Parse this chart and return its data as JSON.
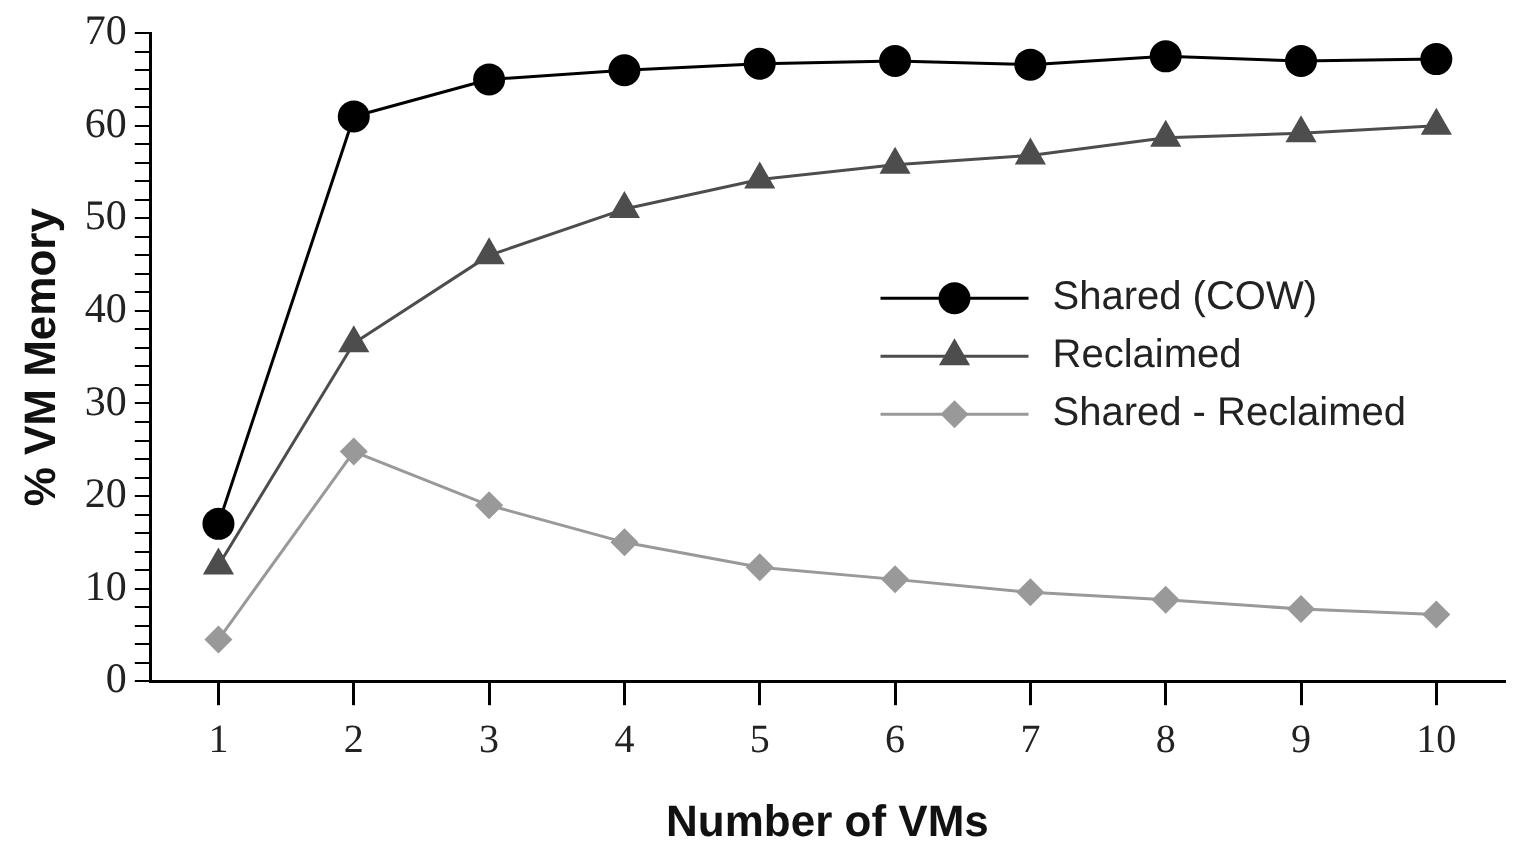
{
  "chart_data": {
    "type": "line",
    "xlabel": "Number of VMs",
    "ylabel": "% VM Memory",
    "categories": [
      "1",
      "2",
      "3",
      "4",
      "5",
      "6",
      "7",
      "8",
      "9",
      "10"
    ],
    "series": [
      {
        "name": "Shared (COW)",
        "color": "#000000",
        "marker": "circle",
        "values": [
          17,
          61,
          65,
          66,
          66.7,
          67,
          66.6,
          67.5,
          67,
          67.2
        ]
      },
      {
        "name": "Reclaimed",
        "color": "#4d4d4d",
        "marker": "triangle",
        "values": [
          12.5,
          36.5,
          46,
          51,
          54.2,
          55.8,
          56.8,
          58.7,
          59.2,
          60
        ]
      },
      {
        "name": "Shared - Reclaimed",
        "color": "#999999",
        "marker": "diamond",
        "values": [
          4.5,
          24.8,
          19,
          15,
          12.3,
          11,
          9.6,
          8.8,
          7.8,
          7.2
        ]
      }
    ],
    "ylim": [
      0,
      70
    ],
    "yticks": [
      0,
      {
        "value": 2,
        "label": null
      },
      {
        "value": 4,
        "label": null
      },
      {
        "value": 6,
        "label": null
      },
      {
        "value": 8,
        "label": null
      },
      10,
      {
        "value": 12,
        "label": null
      },
      {
        "value": 14,
        "label": null
      },
      {
        "value": 16,
        "label": null
      },
      {
        "value": 18,
        "label": null
      },
      20,
      {
        "value": 22,
        "label": null
      },
      {
        "value": 24,
        "label": null
      },
      {
        "value": 26,
        "label": null
      },
      {
        "value": 28,
        "label": null
      },
      30,
      {
        "value": 32,
        "label": null
      },
      {
        "value": 34,
        "label": null
      },
      {
        "value": 36,
        "label": null
      },
      {
        "value": 38,
        "label": null
      },
      40,
      {
        "value": 42,
        "label": null
      },
      {
        "value": 44,
        "label": null
      },
      {
        "value": 46,
        "label": null
      },
      {
        "value": 48,
        "label": null
      },
      50,
      {
        "value": 52,
        "label": null
      },
      {
        "value": 54,
        "label": null
      },
      {
        "value": 56,
        "label": null
      },
      {
        "value": 58,
        "label": null
      },
      60,
      {
        "value": 62,
        "label": null
      },
      {
        "value": 64,
        "label": null
      },
      {
        "value": 66,
        "label": null
      },
      {
        "value": 68,
        "label": null
      },
      70
    ],
    "grid": false,
    "legend": "right",
    "line_style": "solid"
  }
}
